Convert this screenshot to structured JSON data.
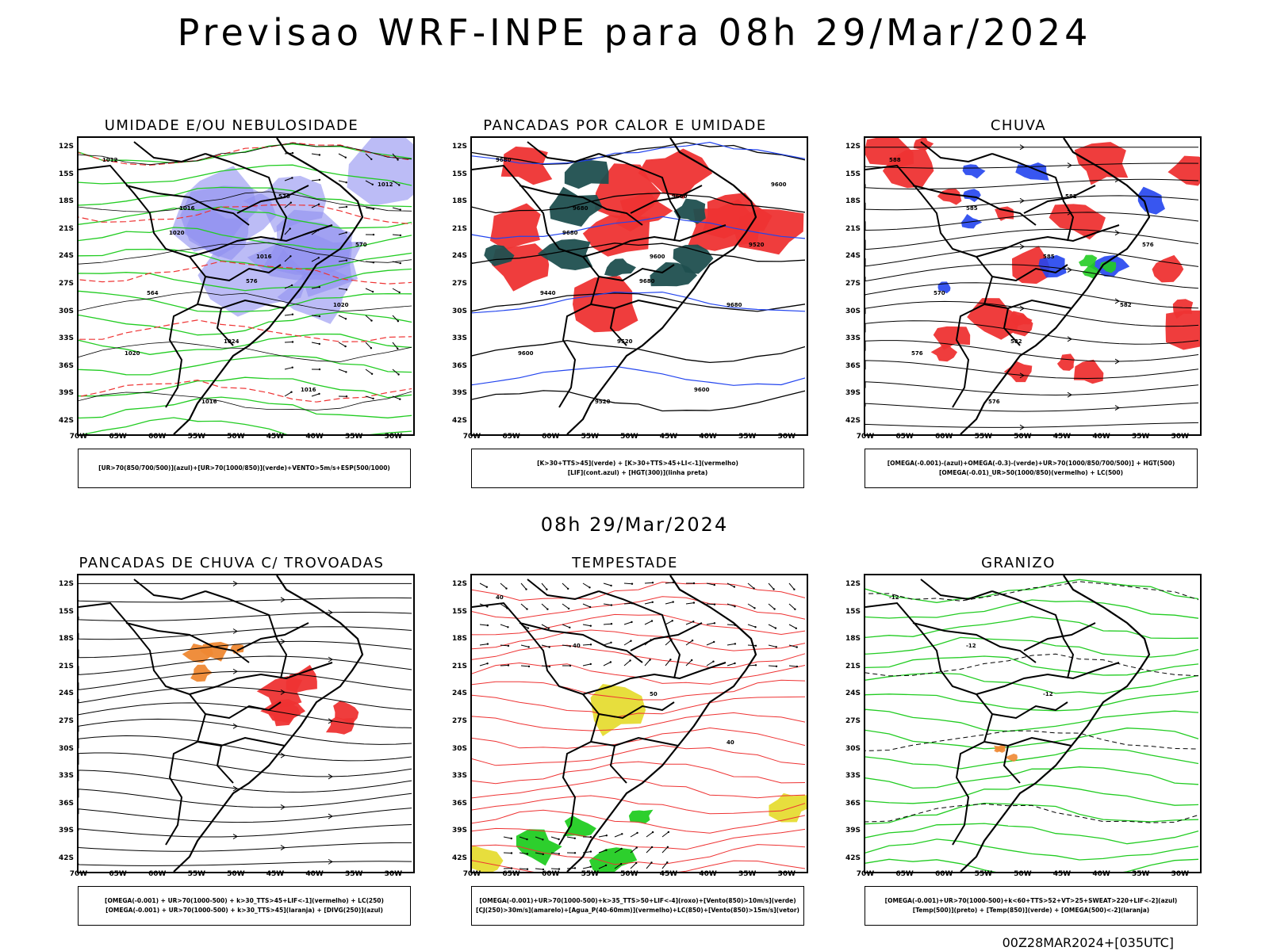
{
  "header": {
    "title": "Previsao WRF-INPE  para 08h 29/Mar/2024",
    "mid_date": "08h 29/Mar/2024",
    "footer": "00Z28MAR2024+[035UTC]"
  },
  "axes": {
    "lat_labels": [
      "12S",
      "15S",
      "18S",
      "21S",
      "24S",
      "27S",
      "30S",
      "33S",
      "36S",
      "39S",
      "42S"
    ],
    "lon_labels": [
      "70W",
      "65W",
      "60W",
      "55W",
      "50W",
      "45W",
      "40W",
      "35W",
      "30W"
    ]
  },
  "colors": {
    "blue_fill": "#8f8ff0",
    "green": "#22cc22",
    "red": "#ee3333",
    "dark_teal": "#1f4f4f",
    "orange": "#ee8833",
    "yellow": "#e6dc33",
    "blue": "#2244ee"
  },
  "panels": [
    {
      "title": "UMIDADE E/OU NEBULOSIDADE",
      "legend": [
        "[UR>70(850/700/500)](azul)+[UR>70(1000/850)](verde)+VENTO>5m/s+ESP(500/1000)"
      ],
      "contour_labels": [
        "1012",
        "1016",
        "1016",
        "1020",
        "1020",
        "1016",
        "576",
        "570",
        "564",
        "1024",
        "1016",
        "1012",
        "1020",
        "576"
      ]
    },
    {
      "title": "PANCADAS POR CALOR E UMIDADE",
      "legend": [
        "[K>30+TTS>45](verde) + [K>30+TTS>45+LI<-1](vermelho)",
        "[LIF](cont.azul) + [HGT(300)](linha preta)"
      ],
      "contour_labels": [
        "9680",
        "9680",
        "9600",
        "9680",
        "9600",
        "9520",
        "9600",
        "9520",
        "9440",
        "9520",
        "9600",
        "9600",
        "9680",
        "9680"
      ]
    },
    {
      "title": "CHUVA",
      "legend": [
        "[OMEGA(-0.001)-(azul)+OMEGA(-0.3)-(verde)+UR>70(1000/850/700/500)] + HGT(500)",
        "[OMEGA(-0.01)_UR>50(1000/850)(vermelho) + LC(500)"
      ],
      "contour_labels": [
        "588",
        "585",
        "585",
        "582",
        "576",
        "576",
        "582",
        "576",
        "570",
        "582"
      ]
    },
    {
      "title": "PANCADAS DE CHUVA C/ TROVOADAS",
      "legend": [
        "[OMEGA(-0.001) + UR>70(1000-500) + k>30_TTS>45+LIF<-1](vermelho) + LC(250)",
        "[OMEGA(-0.001) + UR>70(1000-500) + k>30_TTS>45](laranja) + [DIVG(250)](azul)"
      ],
      "contour_labels": []
    },
    {
      "title": "TEMPESTADE",
      "legend": [
        "[OMEGA(-0.001)+UR>70(1000-500)+k>35_TTS>50+LIF<-4](roxo)+[Vento(850)>10m/s](verde)",
        "[CJ(250)>30m/s](amarelo)+[Agua_P(40-60mm)](vermelho)+LC(850)+[Vento(850)>15m/s](vetor)"
      ],
      "contour_labels": [
        "40",
        "40",
        "50",
        "40"
      ]
    },
    {
      "title": "GRANIZO",
      "legend": [
        "[OMEGA(-0.001)+UR>70(1000-500)+k<60+TTS>52+VT>25+SWEAT>220+LIF<-2](azul)",
        "[Temp(500)](preto) + [Temp(850)](verde) + [OMEGA(500)<-2](laranja)"
      ],
      "contour_labels": [
        "-12",
        "-12",
        "-12"
      ]
    }
  ]
}
